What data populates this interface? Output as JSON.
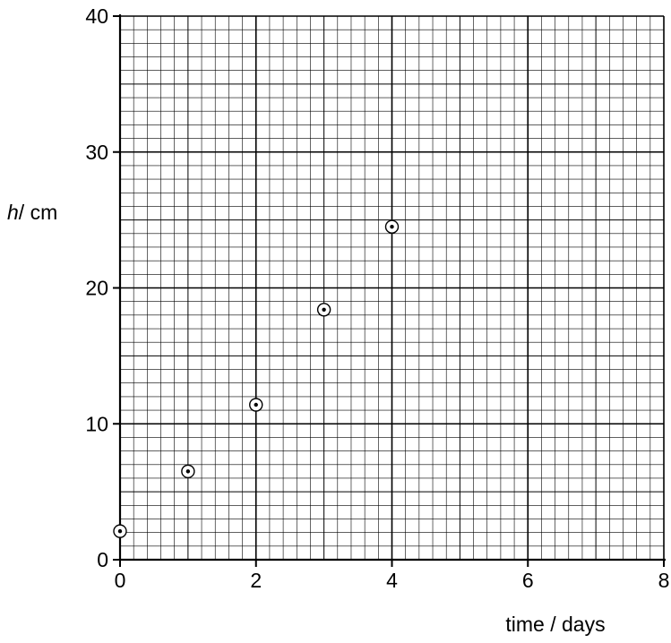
{
  "chart_data": {
    "type": "scatter",
    "title": "",
    "xlabel": "time / days",
    "ylabel_symbol": "h",
    "ylabel_unit": "/ cm",
    "xlim": [
      0,
      8
    ],
    "ylim": [
      0,
      40
    ],
    "x_ticks": [
      "0",
      "2",
      "4",
      "6",
      "8"
    ],
    "y_ticks": [
      "0",
      "10",
      "20",
      "30",
      "40"
    ],
    "grid": true,
    "series": [
      {
        "x": [
          0,
          1,
          2,
          3,
          4
        ],
        "y": [
          2.1,
          6.5,
          11.4,
          18.4,
          24.5
        ]
      }
    ]
  }
}
